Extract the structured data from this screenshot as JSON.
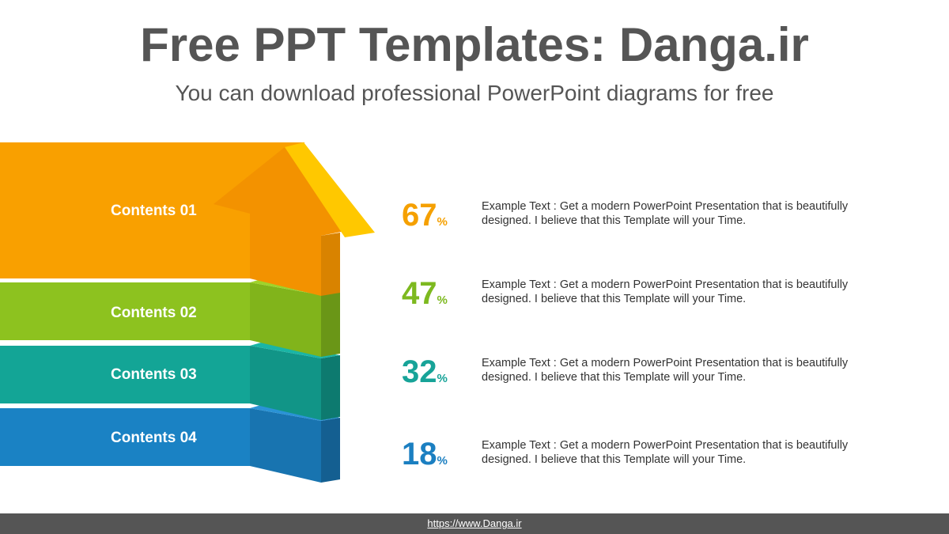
{
  "header": {
    "title": "Free PPT Templates: Danga.ir",
    "subtitle": "You can download professional PowerPoint diagrams for free"
  },
  "items": [
    {
      "label": "Contents 01",
      "value": 67,
      "unit": "%",
      "text": "Example Text : Get a modern PowerPoint  Presentation that is beautifully designed. I believe that this Template will your Time."
    },
    {
      "label": "Contents 02",
      "value": 47,
      "unit": "%",
      "text": "Example Text : Get a modern PowerPoint  Presentation that is beautifully designed. I believe that this Template will your Time."
    },
    {
      "label": "Contents 03",
      "value": 32,
      "unit": "%",
      "text": "Example Text : Get a modern PowerPoint  Presentation that is beautifully designed. I believe that this Template will your Time."
    },
    {
      "label": "Contents 04",
      "value": 18,
      "unit": "%",
      "text": "Example Text : Get a modern PowerPoint  Presentation that is beautifully designed. I believe that this Template will your Time."
    }
  ],
  "footer": {
    "url": "https://www.Danga.ir"
  }
}
